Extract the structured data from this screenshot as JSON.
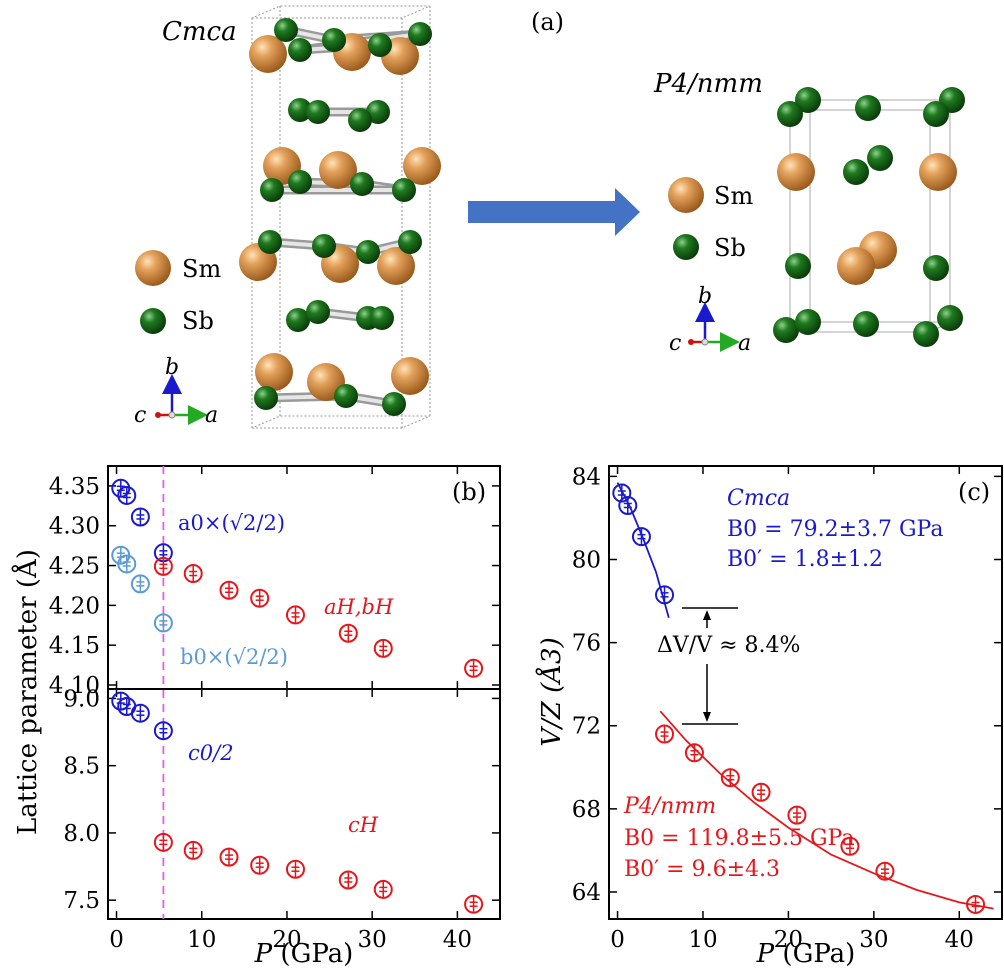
{
  "panel_a": {
    "label": "(a)",
    "left_phase": "Cmca",
    "right_phase": "P4/nmm",
    "legend": {
      "sm": "Sm",
      "sb": "Sb"
    },
    "axes": {
      "b": "b",
      "c": "c",
      "a": "a"
    },
    "colors": {
      "sm": "#d98c3c",
      "sb": "#1e6b1e",
      "arrow": "#4472c4",
      "bond": "#bfbfbf"
    }
  },
  "chart_data": [
    {
      "type": "scatter",
      "panel": "(b) top",
      "ylabel": "Lattice parameter (Å)",
      "xlim": [
        -1,
        45
      ],
      "ylim": [
        4.095,
        4.375
      ],
      "xticks": [
        0,
        10,
        20,
        30,
        40
      ],
      "yticks": [
        4.1,
        4.15,
        4.2,
        4.25,
        4.3,
        4.35
      ],
      "transition_pressure": 5.5,
      "series": [
        {
          "name": "a0×(√2/2)",
          "color": "#1a1acc",
          "points": [
            [
              0.5,
              4.347
            ],
            [
              1.2,
              4.338
            ],
            [
              2.8,
              4.311
            ],
            [
              5.5,
              4.266
            ]
          ]
        },
        {
          "name": "b0×(√2/2)",
          "color": "#5b9bd5",
          "points": [
            [
              0.5,
              4.263
            ],
            [
              1.2,
              4.252
            ],
            [
              2.8,
              4.227
            ],
            [
              5.5,
              4.178
            ]
          ]
        },
        {
          "name": "aH,bH",
          "color": "#e8161b",
          "points": [
            [
              5.5,
              4.249
            ],
            [
              9.0,
              4.24
            ],
            [
              13.2,
              4.219
            ],
            [
              16.8,
              4.209
            ],
            [
              21.0,
              4.188
            ],
            [
              27.2,
              4.165
            ],
            [
              31.3,
              4.146
            ],
            [
              41.9,
              4.121
            ]
          ]
        }
      ]
    },
    {
      "type": "scatter",
      "panel": "(b) bottom",
      "xlabel": "P (GPa)",
      "xlim": [
        -1,
        45
      ],
      "ylim": [
        7.36,
        9.07
      ],
      "xticks": [
        0,
        10,
        20,
        30,
        40
      ],
      "yticks": [
        7.5,
        8.0,
        8.5,
        9.0
      ],
      "series": [
        {
          "name": "c0/2",
          "color": "#1a1acc",
          "points": [
            [
              0.5,
              8.98
            ],
            [
              1.2,
              8.94
            ],
            [
              2.8,
              8.89
            ],
            [
              5.5,
              8.76
            ]
          ]
        },
        {
          "name": "cH",
          "color": "#e8161b",
          "points": [
            [
              5.5,
              7.93
            ],
            [
              9.0,
              7.87
            ],
            [
              13.2,
              7.82
            ],
            [
              16.8,
              7.76
            ],
            [
              21.0,
              7.73
            ],
            [
              27.2,
              7.65
            ],
            [
              31.3,
              7.58
            ],
            [
              41.9,
              7.47
            ]
          ]
        }
      ]
    },
    {
      "type": "scatter",
      "panel": "(c)",
      "xlabel": "P (GPa)",
      "ylabel": "V/Z (Å3)",
      "xlim": [
        -1,
        45
      ],
      "ylim": [
        62.7,
        84.5
      ],
      "xticks": [
        0,
        10,
        20,
        30,
        40
      ],
      "yticks": [
        64,
        68,
        72,
        76,
        80,
        84
      ],
      "series": [
        {
          "name": "Cmca",
          "color": "#1a1acc",
          "points": [
            [
              0.5,
              83.2
            ],
            [
              1.2,
              82.6
            ],
            [
              2.8,
              81.1
            ],
            [
              5.5,
              78.3
            ]
          ],
          "fit": [
            [
              0.0,
              83.7
            ],
            [
              1.5,
              82.5
            ],
            [
              3.0,
              81.0
            ],
            [
              4.5,
              79.4
            ],
            [
              6.0,
              77.2
            ]
          ]
        },
        {
          "name": "P4/nmm",
          "color": "#e8161b",
          "points": [
            [
              5.5,
              71.6
            ],
            [
              9.0,
              70.7
            ],
            [
              13.2,
              69.5
            ],
            [
              16.8,
              68.8
            ],
            [
              21.0,
              67.7
            ],
            [
              27.2,
              66.2
            ],
            [
              31.3,
              65.0
            ],
            [
              41.9,
              63.4
            ]
          ]
        },
        {
          "name": "P4/nmm fit",
          "color": "#e8161b",
          "fit": [
            [
              5.0,
              72.7
            ],
            [
              8.0,
              71.3
            ],
            [
              12.0,
              69.7
            ],
            [
              16.0,
              68.3
            ],
            [
              20.0,
              67.1
            ],
            [
              25.0,
              65.8
            ],
            [
              30.0,
              64.9
            ],
            [
              35.0,
              64.1
            ],
            [
              40.0,
              63.5
            ],
            [
              44.0,
              63.2
            ]
          ]
        }
      ]
    }
  ],
  "panel_b": {
    "label": "(b)",
    "ylabel": "Lattice parameter (Å)",
    "xlabel_italic": "P",
    "xlabel_rest": " (GPa)",
    "labels": {
      "a0": "a0×(√2/2)",
      "b0": "b0×(√2/2)",
      "aH": "aH,bH",
      "c0": "c0/2",
      "cH": "cH"
    }
  },
  "panel_c": {
    "label": "(c)",
    "ylabel": "V/Z (Å3)",
    "xlabel_italic": "P",
    "xlabel_rest": " (GPa)",
    "cmca": {
      "name": "Cmca",
      "B0": "B0 = 79.2±3.7 GPa",
      "B0p": "B0′ = 1.8±1.2"
    },
    "p4": {
      "name": "P4/nmm",
      "B0": "B0 = 119.8±5.5 GPa",
      "B0p": "B0′ = 9.6±4.3"
    },
    "delta": "ΔV/V ≈ 8.4%"
  }
}
